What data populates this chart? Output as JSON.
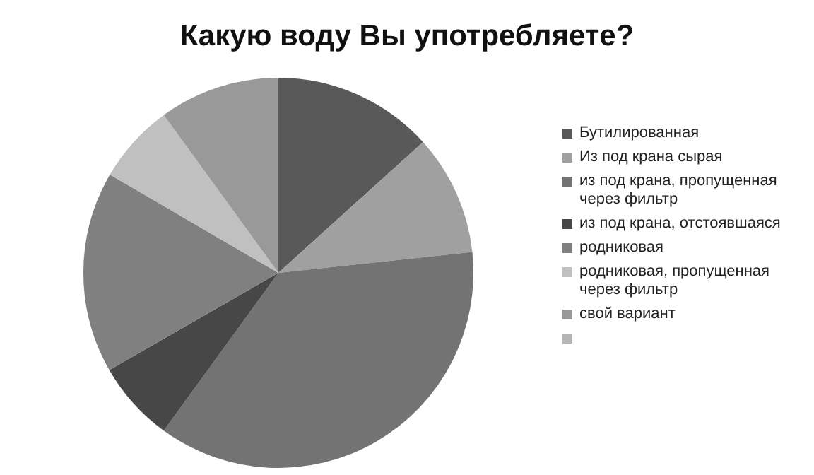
{
  "chart_data": {
    "type": "pie",
    "title": "Какую воду Вы употребляете?",
    "categories": [
      "Бутилированная",
      "Из под крана сырая",
      "из под крана, пропущенная через фильтр",
      "из под крана, отстоявшаяся",
      "родниковая",
      "родниковая, пропущенная через фильтр",
      "свой вариант",
      null
    ],
    "values": [
      13.3,
      10,
      36.7,
      6.7,
      16.7,
      6.6,
      10,
      0
    ],
    "colors": [
      "#595959",
      "#a0a0a0",
      "#737373",
      "#474747",
      "#808080",
      "#c0c0c0",
      "#999999",
      "#b5b5b5"
    ],
    "legend": "right"
  }
}
